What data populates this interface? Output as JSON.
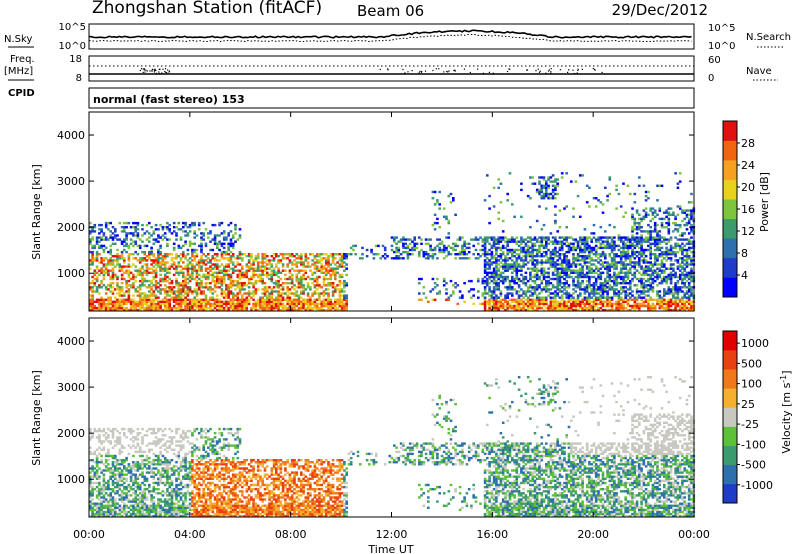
{
  "header": {
    "station": "Zhongshan Station (fitACF)",
    "beam": "Beam 06",
    "date": "29/Dec/2012"
  },
  "params": {
    "nsky_label": "N.Sky",
    "nsearch_label": "N.Search",
    "nsky_ticks": [
      "10^5",
      "10^0"
    ],
    "nsearch_ticks": [
      "10^5",
      "10^0"
    ],
    "freq_label_1": "Freq.",
    "freq_label_2": "[MHz]",
    "freq_ticks": [
      "18",
      "8"
    ],
    "nave_label": "Nave",
    "nave_ticks": [
      "60",
      "0"
    ],
    "cpid_label": "CPID",
    "cpid_text": "normal (fast stereo) 153"
  },
  "chart_data": [
    {
      "type": "heatmap",
      "name": "power",
      "ylabel": "Slant Range [km]",
      "yticks": [
        "4000",
        "3000",
        "2000",
        "1000"
      ],
      "ytick_values": [
        4000,
        3000,
        2000,
        1000
      ],
      "ylim": [
        180,
        4500
      ],
      "colorbar_label": "Power [dB]",
      "colorbar_ticks": [
        "28",
        "24",
        "20",
        "16",
        "12",
        "8",
        "4"
      ],
      "colors": [
        "#0000ff",
        "#1e3cc8",
        "#2e6fae",
        "#3b9a6e",
        "#7bc43c",
        "#e8d01c",
        "#f5a020",
        "#f06410",
        "#e01010"
      ]
    },
    {
      "type": "heatmap",
      "name": "velocity",
      "ylabel": "Slant Range [km]",
      "yticks": [
        "4000",
        "3000",
        "2000",
        "1000"
      ],
      "ytick_values": [
        4000,
        3000,
        2000,
        1000
      ],
      "ylim": [
        180,
        4500
      ],
      "colorbar_label": "Velocity [m s",
      "colorbar_label_sup": "-1",
      "colorbar_label_end": "]",
      "colorbar_ticks": [
        "1000",
        "500",
        "100",
        "25",
        "-25",
        "-100",
        "-500",
        "-1000"
      ],
      "colors": [
        "#1e3cc8",
        "#2e6fae",
        "#3b9a6e",
        "#5cc038",
        "#c8c8c0",
        "#f5b030",
        "#f07818",
        "#e84010",
        "#e00000"
      ]
    }
  ],
  "xaxis": {
    "label": "Time UT",
    "ticks": [
      "00:00",
      "04:00",
      "08:00",
      "12:00",
      "16:00",
      "20:00",
      "00:00"
    ],
    "tick_hours": [
      0,
      4,
      8,
      12,
      16,
      20,
      24
    ]
  }
}
